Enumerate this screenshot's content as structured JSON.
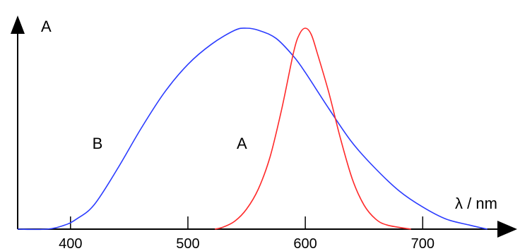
{
  "chart_data": {
    "type": "line",
    "ylabel": "A",
    "xlabel": "λ / nm",
    "xlim": [
      355,
      760
    ],
    "ylim": [
      0,
      1
    ],
    "x_ticks": [
      400,
      500,
      600,
      700
    ],
    "x_tick_labels": [
      "400",
      "500",
      "600",
      "700"
    ],
    "grid": false,
    "legend": "none",
    "series": [
      {
        "name": "B",
        "color": "#2b3cff",
        "x": [
          355,
          380,
          395,
          405,
          420,
          440,
          460,
          480,
          500,
          520,
          540,
          550,
          560,
          575,
          590,
          600,
          620,
          640,
          660,
          680,
          700,
          720,
          740,
          755
        ],
        "y": [
          0,
          0,
          0.02,
          0.05,
          0.12,
          0.3,
          0.5,
          0.68,
          0.82,
          0.92,
          0.99,
          1.0,
          0.99,
          0.95,
          0.86,
          0.78,
          0.6,
          0.43,
          0.3,
          0.19,
          0.11,
          0.05,
          0.02,
          0
        ]
      },
      {
        "name": "A",
        "color": "#ff2a2a",
        "x": [
          523,
          530,
          540,
          550,
          560,
          570,
          580,
          590,
          595,
          600,
          605,
          610,
          620,
          630,
          640,
          650,
          660,
          670,
          690
        ],
        "y": [
          0,
          0.01,
          0.04,
          0.1,
          0.2,
          0.36,
          0.6,
          0.88,
          0.97,
          1.0,
          0.97,
          0.88,
          0.68,
          0.45,
          0.25,
          0.12,
          0.05,
          0.02,
          0
        ]
      }
    ],
    "annotations": [
      {
        "text": "B",
        "x": 423,
        "y": 0.4
      },
      {
        "text": "A",
        "x": 546,
        "y": 0.4
      }
    ]
  }
}
